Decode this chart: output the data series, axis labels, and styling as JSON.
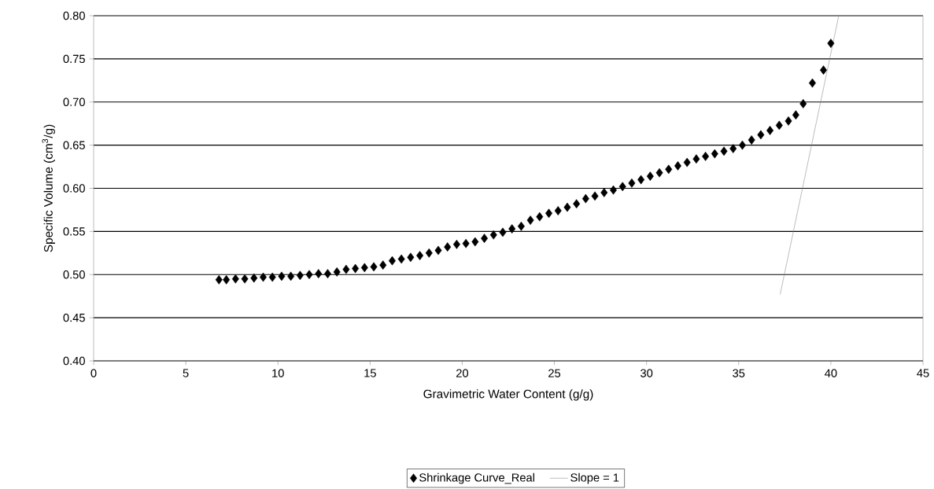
{
  "chart_data": {
    "type": "scatter",
    "xlabel": "Gravimetric Water Content (g/g)",
    "ylabel": "Specific Volume (cm$^{3}$/g)",
    "xlim": [
      0,
      45
    ],
    "ylim": [
      0.4,
      0.8
    ],
    "xticks": [
      0,
      5,
      10,
      15,
      20,
      25,
      30,
      35,
      40,
      45
    ],
    "yticks": [
      {
        "value": 0.4,
        "label": "0.40"
      },
      {
        "value": 0.45,
        "label": "0.45"
      },
      {
        "value": 0.5,
        "label": "0.50"
      },
      {
        "value": 0.55,
        "label": "0.55"
      },
      {
        "value": 0.6,
        "label": "0.60"
      },
      {
        "value": 0.65,
        "label": "0.65"
      },
      {
        "value": 0.7,
        "label": "0.70"
      },
      {
        "value": 0.75,
        "label": "0.75"
      },
      {
        "value": 0.8,
        "label": "0.80"
      }
    ],
    "grid": "y",
    "legend": "bottom",
    "series": [
      {
        "name": "Shrinkage Curve_Real",
        "marker": "diamond",
        "color": "#000000",
        "x": [
          6.8,
          7.2,
          7.7,
          8.2,
          8.7,
          9.2,
          9.7,
          10.2,
          10.7,
          11.2,
          11.7,
          12.2,
          12.7,
          13.2,
          13.7,
          14.2,
          14.7,
          15.2,
          15.7,
          16.2,
          16.7,
          17.2,
          17.7,
          18.2,
          18.7,
          19.2,
          19.7,
          20.2,
          20.7,
          21.2,
          21.7,
          22.2,
          22.7,
          23.2,
          23.7,
          24.2,
          24.7,
          25.2,
          25.7,
          26.2,
          26.7,
          27.2,
          27.7,
          28.2,
          28.7,
          29.2,
          29.7,
          30.2,
          30.7,
          31.2,
          31.7,
          32.2,
          32.7,
          33.2,
          33.7,
          34.2,
          34.7,
          35.2,
          35.7,
          36.2,
          36.7,
          37.2,
          37.7,
          38.1,
          38.5,
          39.0,
          39.6,
          40.0
        ],
        "values": [
          0.494,
          0.494,
          0.495,
          0.495,
          0.496,
          0.497,
          0.497,
          0.498,
          0.498,
          0.499,
          0.5,
          0.501,
          0.501,
          0.503,
          0.506,
          0.507,
          0.508,
          0.509,
          0.511,
          0.516,
          0.518,
          0.52,
          0.522,
          0.525,
          0.528,
          0.532,
          0.535,
          0.536,
          0.538,
          0.542,
          0.546,
          0.549,
          0.553,
          0.556,
          0.563,
          0.567,
          0.571,
          0.574,
          0.578,
          0.582,
          0.588,
          0.591,
          0.595,
          0.598,
          0.602,
          0.606,
          0.61,
          0.614,
          0.618,
          0.622,
          0.626,
          0.63,
          0.634,
          0.637,
          0.64,
          0.643,
          0.646,
          0.65,
          0.656,
          0.662,
          0.667,
          0.673,
          0.678,
          0.685,
          0.698,
          0.722,
          0.737,
          0.768
        ]
      },
      {
        "name": "Slope = 1",
        "type": "line",
        "marker": "none",
        "line_style": "solid",
        "color": "#808080",
        "x": [
          37.25,
          40.43
        ],
        "values": [
          0.477,
          0.8
        ]
      }
    ]
  }
}
